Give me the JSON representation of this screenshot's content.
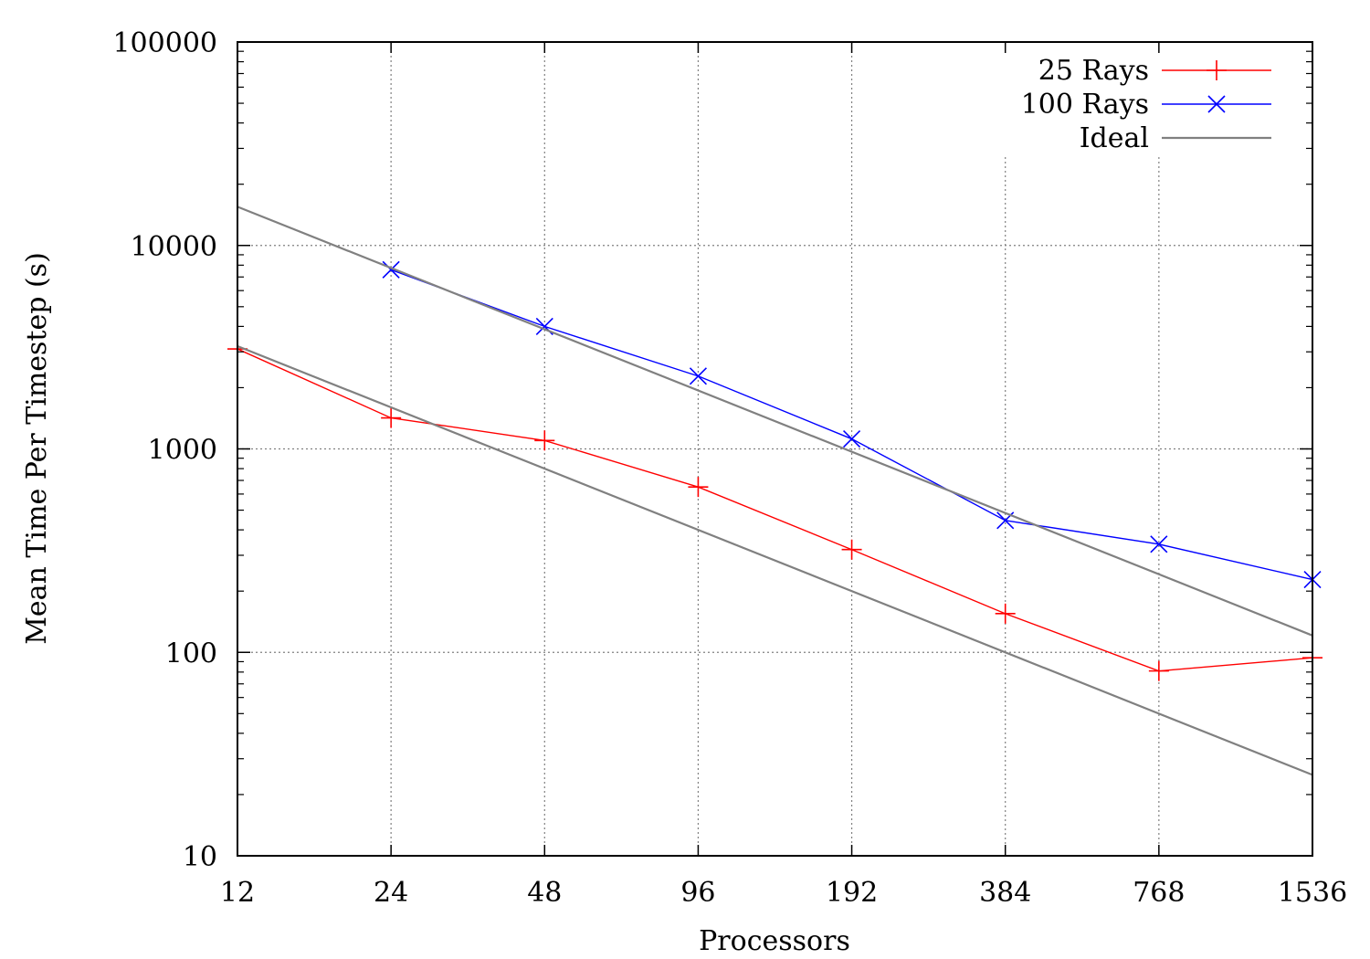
{
  "chart_data": {
    "type": "line",
    "xlabel": "Processors",
    "ylabel": "Mean Time Per Timestep (s)",
    "x_scale": "log2",
    "y_scale": "log10",
    "xlim": [
      12,
      1536
    ],
    "ylim": [
      10,
      100000
    ],
    "x_ticks": [
      12,
      24,
      48,
      96,
      192,
      384,
      768,
      1536
    ],
    "x_tick_labels": [
      "12",
      "24",
      "48",
      "96",
      "192",
      "384",
      "768",
      "1536"
    ],
    "y_ticks": [
      10,
      100,
      1000,
      10000,
      100000
    ],
    "y_tick_labels": [
      "10",
      "100",
      "1000",
      "10000",
      "100000"
    ],
    "grid": true,
    "legend_position": "top-right",
    "series": [
      {
        "name": "25 Rays",
        "color": "#ff0000",
        "marker": "plus",
        "x": [
          12,
          24,
          48,
          96,
          192,
          384,
          768,
          1536
        ],
        "y": [
          3100,
          1420,
          1100,
          650,
          320,
          155,
          81,
          94
        ]
      },
      {
        "name": "100 Rays",
        "color": "#0000ff",
        "marker": "cross",
        "x": [
          24,
          48,
          96,
          192,
          384,
          768,
          1536
        ],
        "y": [
          7600,
          4000,
          2280,
          1120,
          445,
          340,
          228
        ]
      },
      {
        "name": "Ideal",
        "color": "#808080",
        "marker": "none",
        "x": [
          12,
          1536
        ],
        "y": [
          15500,
          121
        ]
      },
      {
        "name": "",
        "color": "#808080",
        "marker": "none",
        "x": [
          12,
          1536
        ],
        "y": [
          3200,
          25
        ]
      }
    ]
  }
}
